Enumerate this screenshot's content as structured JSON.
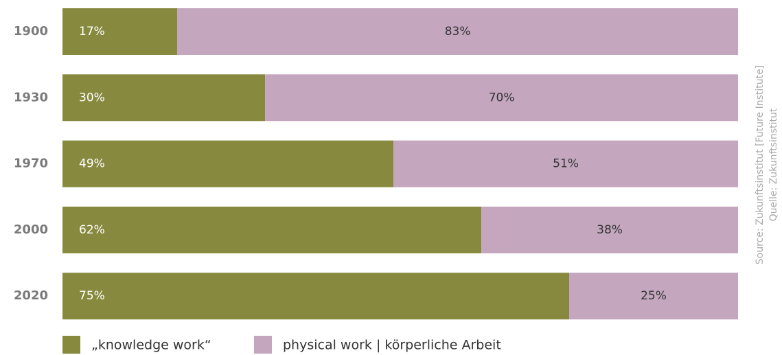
{
  "chart_data": {
    "type": "stacked_bar_horizontal",
    "categories": [
      "1900",
      "1930",
      "1970",
      "2000",
      "2020"
    ],
    "series": [
      {
        "name": "„knowledge work“",
        "color": "#878a3e",
        "values": [
          17,
          30,
          49,
          62,
          75
        ],
        "value_labels": [
          "17%",
          "30%",
          "49%",
          "62%",
          "75%"
        ]
      },
      {
        "name": "physical work | körperliche Arbeit",
        "color": "#c4a6bf",
        "values": [
          83,
          70,
          51,
          38,
          25
        ],
        "value_labels": [
          "83%",
          "70%",
          "51%",
          "38%",
          "25%"
        ]
      }
    ],
    "xlim": [
      0,
      100
    ],
    "legend": "bottom",
    "source": [
      "Source: Zukunftsinstitut [Future Institute]",
      "Quelle: Zukunftsinstitut"
    ]
  }
}
